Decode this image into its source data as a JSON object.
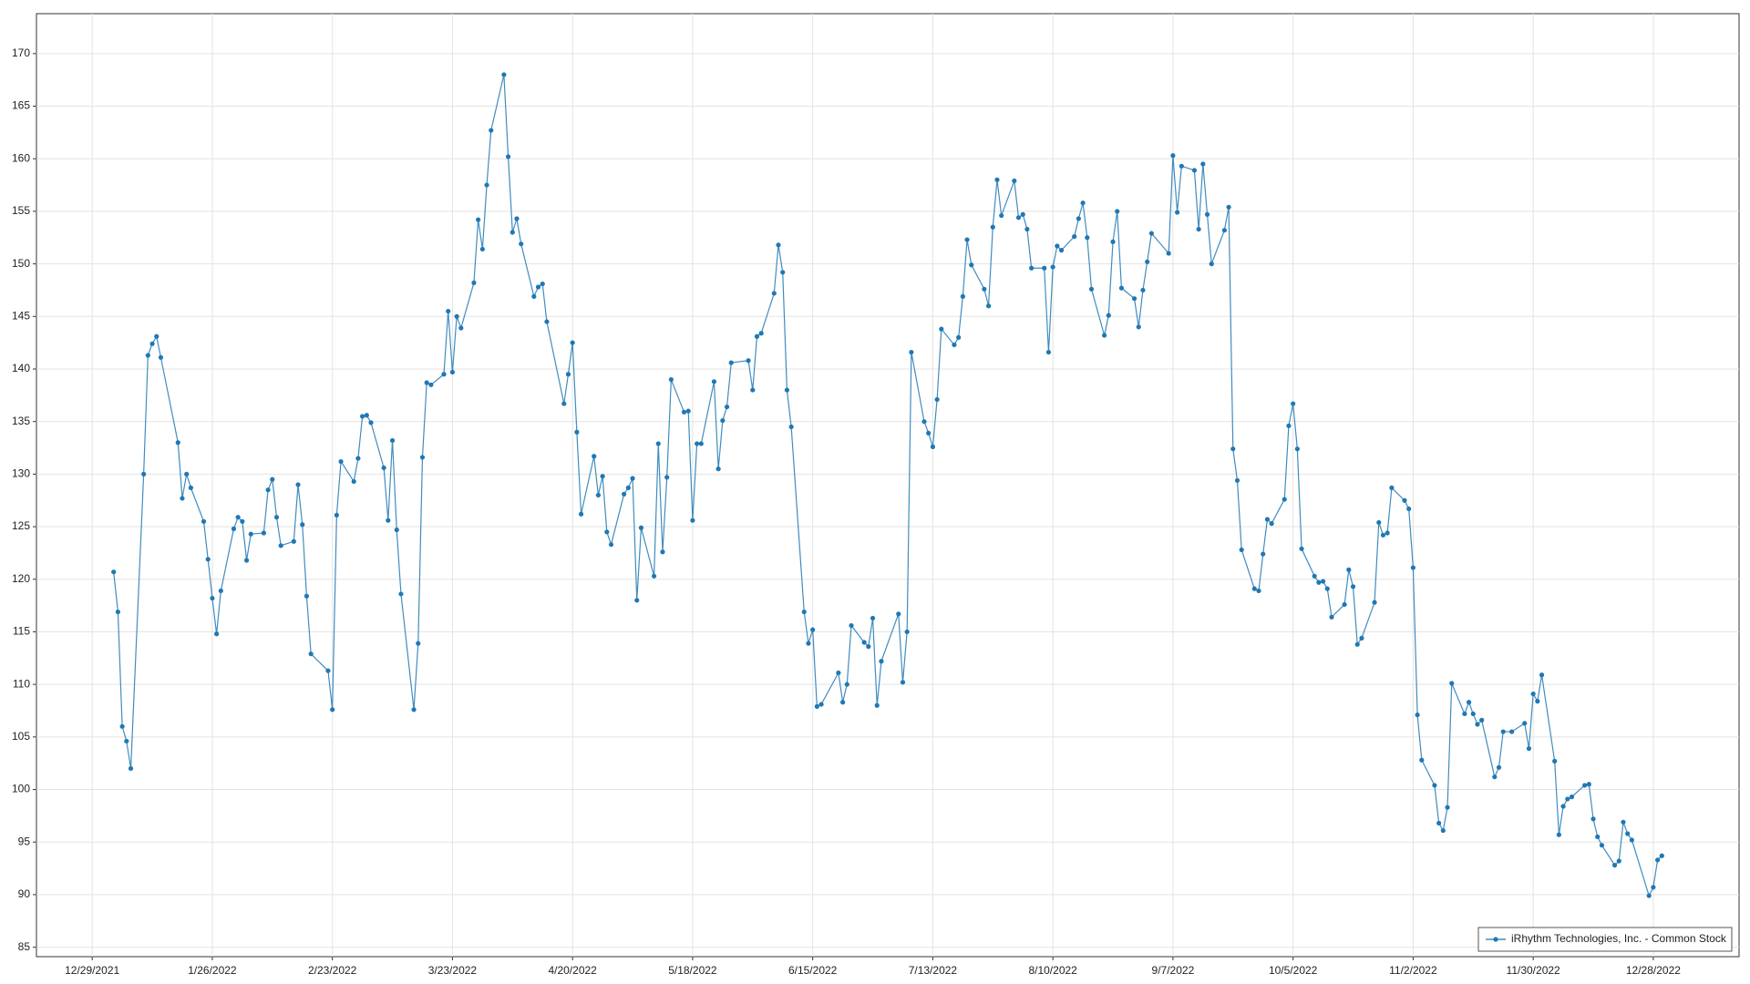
{
  "chart_data": {
    "type": "line",
    "x": [
      "1/3/2022",
      "1/4/2022",
      "1/5/2022",
      "1/6/2022",
      "1/7/2022",
      "1/10/2022",
      "1/11/2022",
      "1/12/2022",
      "1/13/2022",
      "1/14/2022",
      "1/18/2022",
      "1/19/2022",
      "1/20/2022",
      "1/21/2022",
      "1/24/2022",
      "1/25/2022",
      "1/26/2022",
      "1/27/2022",
      "1/28/2022",
      "1/31/2022",
      "2/1/2022",
      "2/2/2022",
      "2/3/2022",
      "2/4/2022",
      "2/7/2022",
      "2/8/2022",
      "2/9/2022",
      "2/10/2022",
      "2/11/2022",
      "2/14/2022",
      "2/15/2022",
      "2/16/2022",
      "2/17/2022",
      "2/18/2022",
      "2/22/2022",
      "2/23/2022",
      "2/24/2022",
      "2/25/2022",
      "2/28/2022",
      "3/1/2022",
      "3/2/2022",
      "3/3/2022",
      "3/4/2022",
      "3/7/2022",
      "3/8/2022",
      "3/9/2022",
      "3/10/2022",
      "3/11/2022",
      "3/14/2022",
      "3/15/2022",
      "3/16/2022",
      "3/17/2022",
      "3/18/2022",
      "3/21/2022",
      "3/22/2022",
      "3/23/2022",
      "3/24/2022",
      "3/25/2022",
      "3/28/2022",
      "3/29/2022",
      "3/30/2022",
      "3/31/2022",
      "4/1/2022",
      "4/4/2022",
      "4/5/2022",
      "4/6/2022",
      "4/7/2022",
      "4/8/2022",
      "4/11/2022",
      "4/12/2022",
      "4/13/2022",
      "4/14/2022",
      "4/18/2022",
      "4/19/2022",
      "4/20/2022",
      "4/21/2022",
      "4/22/2022",
      "4/25/2022",
      "4/26/2022",
      "4/27/2022",
      "4/28/2022",
      "4/29/2022",
      "5/2/2022",
      "5/3/2022",
      "5/4/2022",
      "5/5/2022",
      "5/6/2022",
      "5/9/2022",
      "5/10/2022",
      "5/11/2022",
      "5/12/2022",
      "5/13/2022",
      "5/16/2022",
      "5/17/2022",
      "5/18/2022",
      "5/19/2022",
      "5/20/2022",
      "5/23/2022",
      "5/24/2022",
      "5/25/2022",
      "5/26/2022",
      "5/27/2022",
      "5/31/2022",
      "6/1/2022",
      "6/2/2022",
      "6/3/2022",
      "6/6/2022",
      "6/7/2022",
      "6/8/2022",
      "6/9/2022",
      "6/10/2022",
      "6/13/2022",
      "6/14/2022",
      "6/15/2022",
      "6/16/2022",
      "6/17/2022",
      "6/21/2022",
      "6/22/2022",
      "6/23/2022",
      "6/24/2022",
      "6/27/2022",
      "6/28/2022",
      "6/29/2022",
      "6/30/2022",
      "7/1/2022",
      "7/5/2022",
      "7/6/2022",
      "7/7/2022",
      "7/8/2022",
      "7/11/2022",
      "7/12/2022",
      "7/13/2022",
      "7/14/2022",
      "7/15/2022",
      "7/18/2022",
      "7/19/2022",
      "7/20/2022",
      "7/21/2022",
      "7/22/2022",
      "7/25/2022",
      "7/26/2022",
      "7/27/2022",
      "7/28/2022",
      "7/29/2022",
      "8/1/2022",
      "8/2/2022",
      "8/3/2022",
      "8/4/2022",
      "8/5/2022",
      "8/8/2022",
      "8/9/2022",
      "8/10/2022",
      "8/11/2022",
      "8/12/2022",
      "8/15/2022",
      "8/16/2022",
      "8/17/2022",
      "8/18/2022",
      "8/19/2022",
      "8/22/2022",
      "8/23/2022",
      "8/24/2022",
      "8/25/2022",
      "8/26/2022",
      "8/29/2022",
      "8/30/2022",
      "8/31/2022",
      "9/1/2022",
      "9/2/2022",
      "9/6/2022",
      "9/7/2022",
      "9/8/2022",
      "9/9/2022",
      "9/12/2022",
      "9/13/2022",
      "9/14/2022",
      "9/15/2022",
      "9/16/2022",
      "9/19/2022",
      "9/20/2022",
      "9/21/2022",
      "9/22/2022",
      "9/23/2022",
      "9/26/2022",
      "9/27/2022",
      "9/28/2022",
      "9/29/2022",
      "9/30/2022",
      "10/3/2022",
      "10/4/2022",
      "10/5/2022",
      "10/6/2022",
      "10/7/2022",
      "10/10/2022",
      "10/11/2022",
      "10/12/2022",
      "10/13/2022",
      "10/14/2022",
      "10/17/2022",
      "10/18/2022",
      "10/19/2022",
      "10/20/2022",
      "10/21/2022",
      "10/24/2022",
      "10/25/2022",
      "10/26/2022",
      "10/27/2022",
      "10/28/2022",
      "10/31/2022",
      "11/1/2022",
      "11/2/2022",
      "11/3/2022",
      "11/4/2022",
      "11/7/2022",
      "11/8/2022",
      "11/9/2022",
      "11/10/2022",
      "11/11/2022",
      "11/14/2022",
      "11/15/2022",
      "11/16/2022",
      "11/17/2022",
      "11/18/2022",
      "11/21/2022",
      "11/22/2022",
      "11/23/2022",
      "11/25/2022",
      "11/28/2022",
      "11/29/2022",
      "11/30/2022",
      "12/1/2022",
      "12/2/2022",
      "12/5/2022",
      "12/6/2022",
      "12/7/2022",
      "12/8/2022",
      "12/9/2022",
      "12/12/2022",
      "12/13/2022",
      "12/14/2022",
      "12/15/2022",
      "12/16/2022",
      "12/19/2022",
      "12/20/2022",
      "12/21/2022",
      "12/22/2022",
      "12/23/2022",
      "12/27/2022",
      "12/28/2022",
      "12/29/2022",
      "12/30/2022"
    ],
    "series": [
      {
        "name": "iRhythm Technologies, Inc. - Common Stock",
        "color": "#1f78b4",
        "values": [
          120.7,
          116.9,
          106.0,
          104.6,
          102.0,
          130.0,
          141.3,
          142.4,
          143.1,
          141.1,
          133.0,
          127.7,
          130.0,
          128.7,
          125.5,
          121.9,
          118.2,
          114.8,
          118.9,
          124.8,
          125.9,
          125.5,
          121.8,
          124.3,
          124.4,
          128.5,
          129.5,
          125.9,
          123.2,
          123.6,
          129.0,
          125.2,
          118.4,
          112.9,
          111.3,
          107.6,
          126.1,
          131.2,
          129.3,
          131.5,
          135.5,
          135.6,
          134.9,
          130.6,
          125.6,
          133.2,
          124.7,
          118.6,
          107.6,
          113.9,
          131.6,
          138.7,
          138.5,
          139.5,
          145.5,
          139.7,
          145.0,
          143.9,
          148.2,
          154.2,
          151.4,
          157.5,
          162.7,
          168.0,
          160.2,
          153.0,
          154.3,
          151.9,
          146.9,
          147.8,
          148.1,
          144.5,
          136.7,
          139.5,
          142.5,
          134.0,
          126.2,
          131.7,
          128.0,
          129.8,
          124.5,
          123.3,
          128.1,
          128.7,
          129.6,
          118.0,
          124.9,
          120.3,
          132.9,
          122.6,
          129.7,
          139.0,
          135.9,
          136.0,
          125.6,
          132.9,
          132.9,
          138.8,
          130.5,
          135.1,
          136.4,
          140.6,
          140.8,
          138.0,
          143.1,
          143.4,
          147.2,
          151.8,
          149.2,
          138.0,
          134.5,
          116.9,
          113.9,
          115.2,
          107.9,
          108.1,
          111.1,
          108.3,
          110.0,
          115.6,
          114.0,
          113.6,
          116.3,
          108.0,
          112.2,
          116.7,
          110.2,
          115.0,
          141.6,
          135.0,
          133.9,
          132.6,
          137.1,
          143.8,
          142.3,
          143.0,
          146.9,
          152.3,
          149.9,
          147.6,
          146.0,
          153.5,
          158.0,
          154.6,
          157.9,
          154.4,
          154.7,
          153.3,
          149.6,
          149.6,
          141.6,
          149.7,
          151.7,
          151.3,
          152.6,
          154.3,
          155.8,
          152.5,
          147.6,
          143.2,
          145.1,
          152.1,
          155.0,
          147.7,
          146.7,
          144.0,
          147.5,
          150.2,
          152.9,
          151.0,
          160.3,
          154.9,
          159.3,
          158.9,
          153.3,
          159.5,
          154.7,
          150.0,
          153.2,
          155.4,
          132.4,
          129.4,
          122.8,
          119.1,
          118.9,
          122.4,
          125.7,
          125.3,
          127.6,
          134.6,
          136.7,
          132.4,
          122.9,
          120.3,
          119.7,
          119.8,
          119.1,
          116.4,
          117.6,
          120.9,
          119.3,
          113.8,
          114.4,
          117.8,
          125.4,
          124.2,
          124.4,
          128.7,
          127.5,
          126.7,
          121.1,
          107.1,
          102.8,
          100.4,
          96.8,
          96.1,
          98.3,
          110.1,
          107.2,
          108.3,
          107.2,
          106.2,
          106.6,
          101.2,
          102.1,
          105.5,
          105.5,
          106.3,
          103.9,
          109.1,
          108.4,
          110.9,
          102.7,
          95.7,
          98.4,
          99.1,
          99.3,
          100.4,
          100.5,
          97.2,
          95.5,
          94.7,
          92.8,
          93.2,
          96.9,
          95.8,
          95.2,
          89.9,
          90.7,
          93.3,
          93.7
        ]
      }
    ],
    "xlim": [
      "12/16/2021",
      "1/17/2023"
    ],
    "xticks": [
      "12/29/2021",
      "1/26/2022",
      "2/23/2022",
      "3/23/2022",
      "4/20/2022",
      "5/18/2022",
      "6/15/2022",
      "7/13/2022",
      "8/10/2022",
      "9/7/2022",
      "10/5/2022",
      "11/2/2022",
      "11/30/2022",
      "12/28/2022"
    ],
    "ylim": [
      84.1,
      173.8
    ],
    "yticks": [
      85,
      90,
      95,
      100,
      105,
      110,
      115,
      120,
      125,
      130,
      135,
      140,
      145,
      150,
      155,
      160,
      165,
      170
    ],
    "grid": true,
    "legend": "lower right"
  }
}
